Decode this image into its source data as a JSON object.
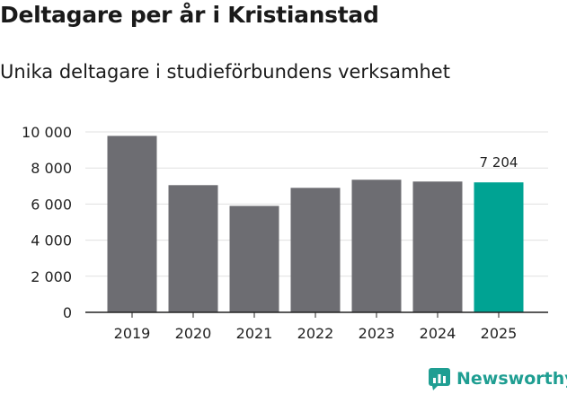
{
  "chart_data": {
    "type": "bar",
    "title": "Deltagare per år i Kristianstad",
    "subtitle": "Unika deltagare i studieförbundens verksamhet",
    "categories": [
      "2019",
      "2020",
      "2021",
      "2022",
      "2023",
      "2024",
      "2025"
    ],
    "values": [
      9780,
      7050,
      5900,
      6900,
      7350,
      7250,
      7204
    ],
    "ylim": [
      0,
      10000
    ],
    "yticks": [
      0,
      2000,
      4000,
      6000,
      8000,
      10000
    ],
    "ytick_labels": [
      "0",
      "2 000",
      "4 000",
      "6 000",
      "8 000",
      "10 000"
    ],
    "xlabel": "",
    "ylabel": "",
    "grid": true,
    "highlight_index": 6,
    "highlight_label": "7 204",
    "colors": {
      "bar": "#6d6d72",
      "highlight": "#00a393",
      "grid": "#e0e0e0",
      "axis": "#222222"
    }
  },
  "brand": {
    "name": "Newsworthy",
    "color": "#1f9e92"
  }
}
